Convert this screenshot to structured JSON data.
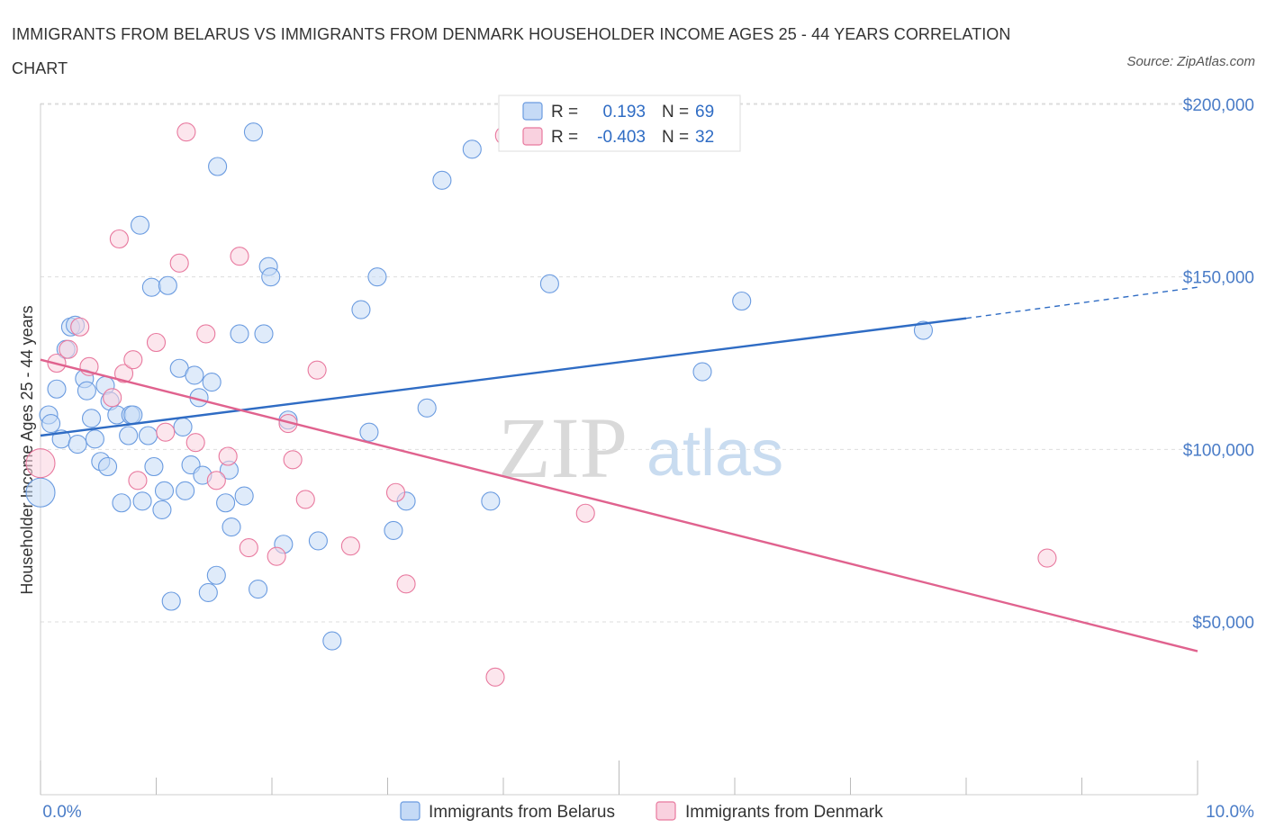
{
  "title": "IMMIGRANTS FROM BELARUS VS IMMIGRANTS FROM DENMARK HOUSEHOLDER INCOME AGES 25 - 44 YEARS CORRELATION CHART",
  "source": "Source: ZipAtlas.com",
  "watermark": {
    "zip": "ZIP",
    "atlas": "atlas"
  },
  "legend": {
    "r_label": "R =",
    "n_label": "N =",
    "rows": [
      {
        "r": "0.193",
        "n": "69"
      },
      {
        "r": "-0.403",
        "n": "32"
      }
    ]
  },
  "chart_data": {
    "type": "scatter",
    "title": "IMMIGRANTS FROM BELARUS VS IMMIGRANTS FROM DENMARK HOUSEHOLDER INCOME AGES 25 - 44 YEARS CORRELATION CHART",
    "xlabel": "",
    "ylabel": "Householder Income Ages 25 - 44 years",
    "xlim": [
      0,
      10
    ],
    "ylim": [
      0,
      200000
    ],
    "x_tick_labels": [
      "0.0%",
      "10.0%"
    ],
    "y_ticks": [
      50000,
      100000,
      150000,
      200000
    ],
    "y_tick_labels": [
      "$50,000",
      "$100,000",
      "$150,000",
      "$200,000"
    ],
    "grid": true,
    "legend_position": "top-center",
    "series": [
      {
        "name": "Immigrants from Belarus",
        "color": "#6a9be0",
        "fill": "#c5daf6",
        "r": 0.193,
        "n": 69,
        "trend": {
          "x": [
            0.0,
            8.0
          ],
          "y": [
            104000,
            138000
          ],
          "dashed_to": [
            10.0,
            147000
          ]
        },
        "points": [
          [
            0.0,
            87500
          ],
          [
            0.07,
            110000
          ],
          [
            0.09,
            107500
          ],
          [
            0.14,
            117500
          ],
          [
            0.18,
            103000
          ],
          [
            0.22,
            129000
          ],
          [
            0.26,
            135500
          ],
          [
            0.3,
            136000
          ],
          [
            0.32,
            101500
          ],
          [
            0.38,
            120500
          ],
          [
            0.4,
            117000
          ],
          [
            0.44,
            109000
          ],
          [
            0.47,
            103000
          ],
          [
            0.52,
            96500
          ],
          [
            0.56,
            118500
          ],
          [
            0.58,
            95000
          ],
          [
            0.6,
            114000
          ],
          [
            0.66,
            110000
          ],
          [
            0.7,
            84500
          ],
          [
            0.76,
            104000
          ],
          [
            0.78,
            110000
          ],
          [
            0.8,
            110000
          ],
          [
            0.86,
            165000
          ],
          [
            0.88,
            85000
          ],
          [
            0.93,
            104000
          ],
          [
            0.96,
            147000
          ],
          [
            0.98,
            95000
          ],
          [
            1.05,
            82500
          ],
          [
            1.07,
            88000
          ],
          [
            1.1,
            147500
          ],
          [
            1.13,
            56000
          ],
          [
            1.2,
            123500
          ],
          [
            1.23,
            106500
          ],
          [
            1.25,
            88000
          ],
          [
            1.3,
            95500
          ],
          [
            1.33,
            121500
          ],
          [
            1.37,
            115000
          ],
          [
            1.4,
            92500
          ],
          [
            1.45,
            58500
          ],
          [
            1.48,
            119500
          ],
          [
            1.52,
            63500
          ],
          [
            1.53,
            182000
          ],
          [
            1.6,
            84500
          ],
          [
            1.63,
            94000
          ],
          [
            1.65,
            77500
          ],
          [
            1.72,
            133500
          ],
          [
            1.76,
            86500
          ],
          [
            1.84,
            192000
          ],
          [
            1.88,
            59500
          ],
          [
            1.93,
            133500
          ],
          [
            1.97,
            153000
          ],
          [
            1.99,
            150000
          ],
          [
            2.1,
            72500
          ],
          [
            2.14,
            108500
          ],
          [
            2.4,
            73500
          ],
          [
            2.52,
            44500
          ],
          [
            2.77,
            140500
          ],
          [
            2.84,
            105000
          ],
          [
            2.91,
            150000
          ],
          [
            3.05,
            76500
          ],
          [
            3.16,
            85000
          ],
          [
            3.34,
            112000
          ],
          [
            3.47,
            178000
          ],
          [
            3.73,
            187000
          ],
          [
            3.89,
            85000
          ],
          [
            4.4,
            148000
          ],
          [
            5.72,
            122500
          ],
          [
            6.06,
            143000
          ],
          [
            7.63,
            134500
          ]
        ]
      },
      {
        "name": "Immigrants from Denmark",
        "color": "#e8789e",
        "fill": "#f9d1df",
        "r": -0.403,
        "n": 32,
        "trend": {
          "x": [
            0.0,
            10.0
          ],
          "y": [
            126000,
            41500
          ]
        },
        "points": [
          [
            0.0,
            96000
          ],
          [
            0.14,
            125000
          ],
          [
            0.24,
            129000
          ],
          [
            0.34,
            135500
          ],
          [
            0.42,
            124000
          ],
          [
            0.62,
            115000
          ],
          [
            0.68,
            161000
          ],
          [
            0.72,
            122000
          ],
          [
            0.8,
            126000
          ],
          [
            0.84,
            91000
          ],
          [
            1.0,
            131000
          ],
          [
            1.08,
            105000
          ],
          [
            1.2,
            154000
          ],
          [
            1.26,
            192000
          ],
          [
            1.34,
            102000
          ],
          [
            1.43,
            133500
          ],
          [
            1.52,
            91000
          ],
          [
            1.62,
            98000
          ],
          [
            1.72,
            156000
          ],
          [
            1.8,
            71500
          ],
          [
            2.04,
            69000
          ],
          [
            2.14,
            107500
          ],
          [
            2.18,
            97000
          ],
          [
            2.29,
            85500
          ],
          [
            2.39,
            123000
          ],
          [
            2.68,
            72000
          ],
          [
            3.07,
            87500
          ],
          [
            3.16,
            61000
          ],
          [
            3.93,
            34000
          ],
          [
            4.01,
            191000
          ],
          [
            4.71,
            81500
          ],
          [
            8.7,
            68500
          ]
        ]
      }
    ]
  }
}
